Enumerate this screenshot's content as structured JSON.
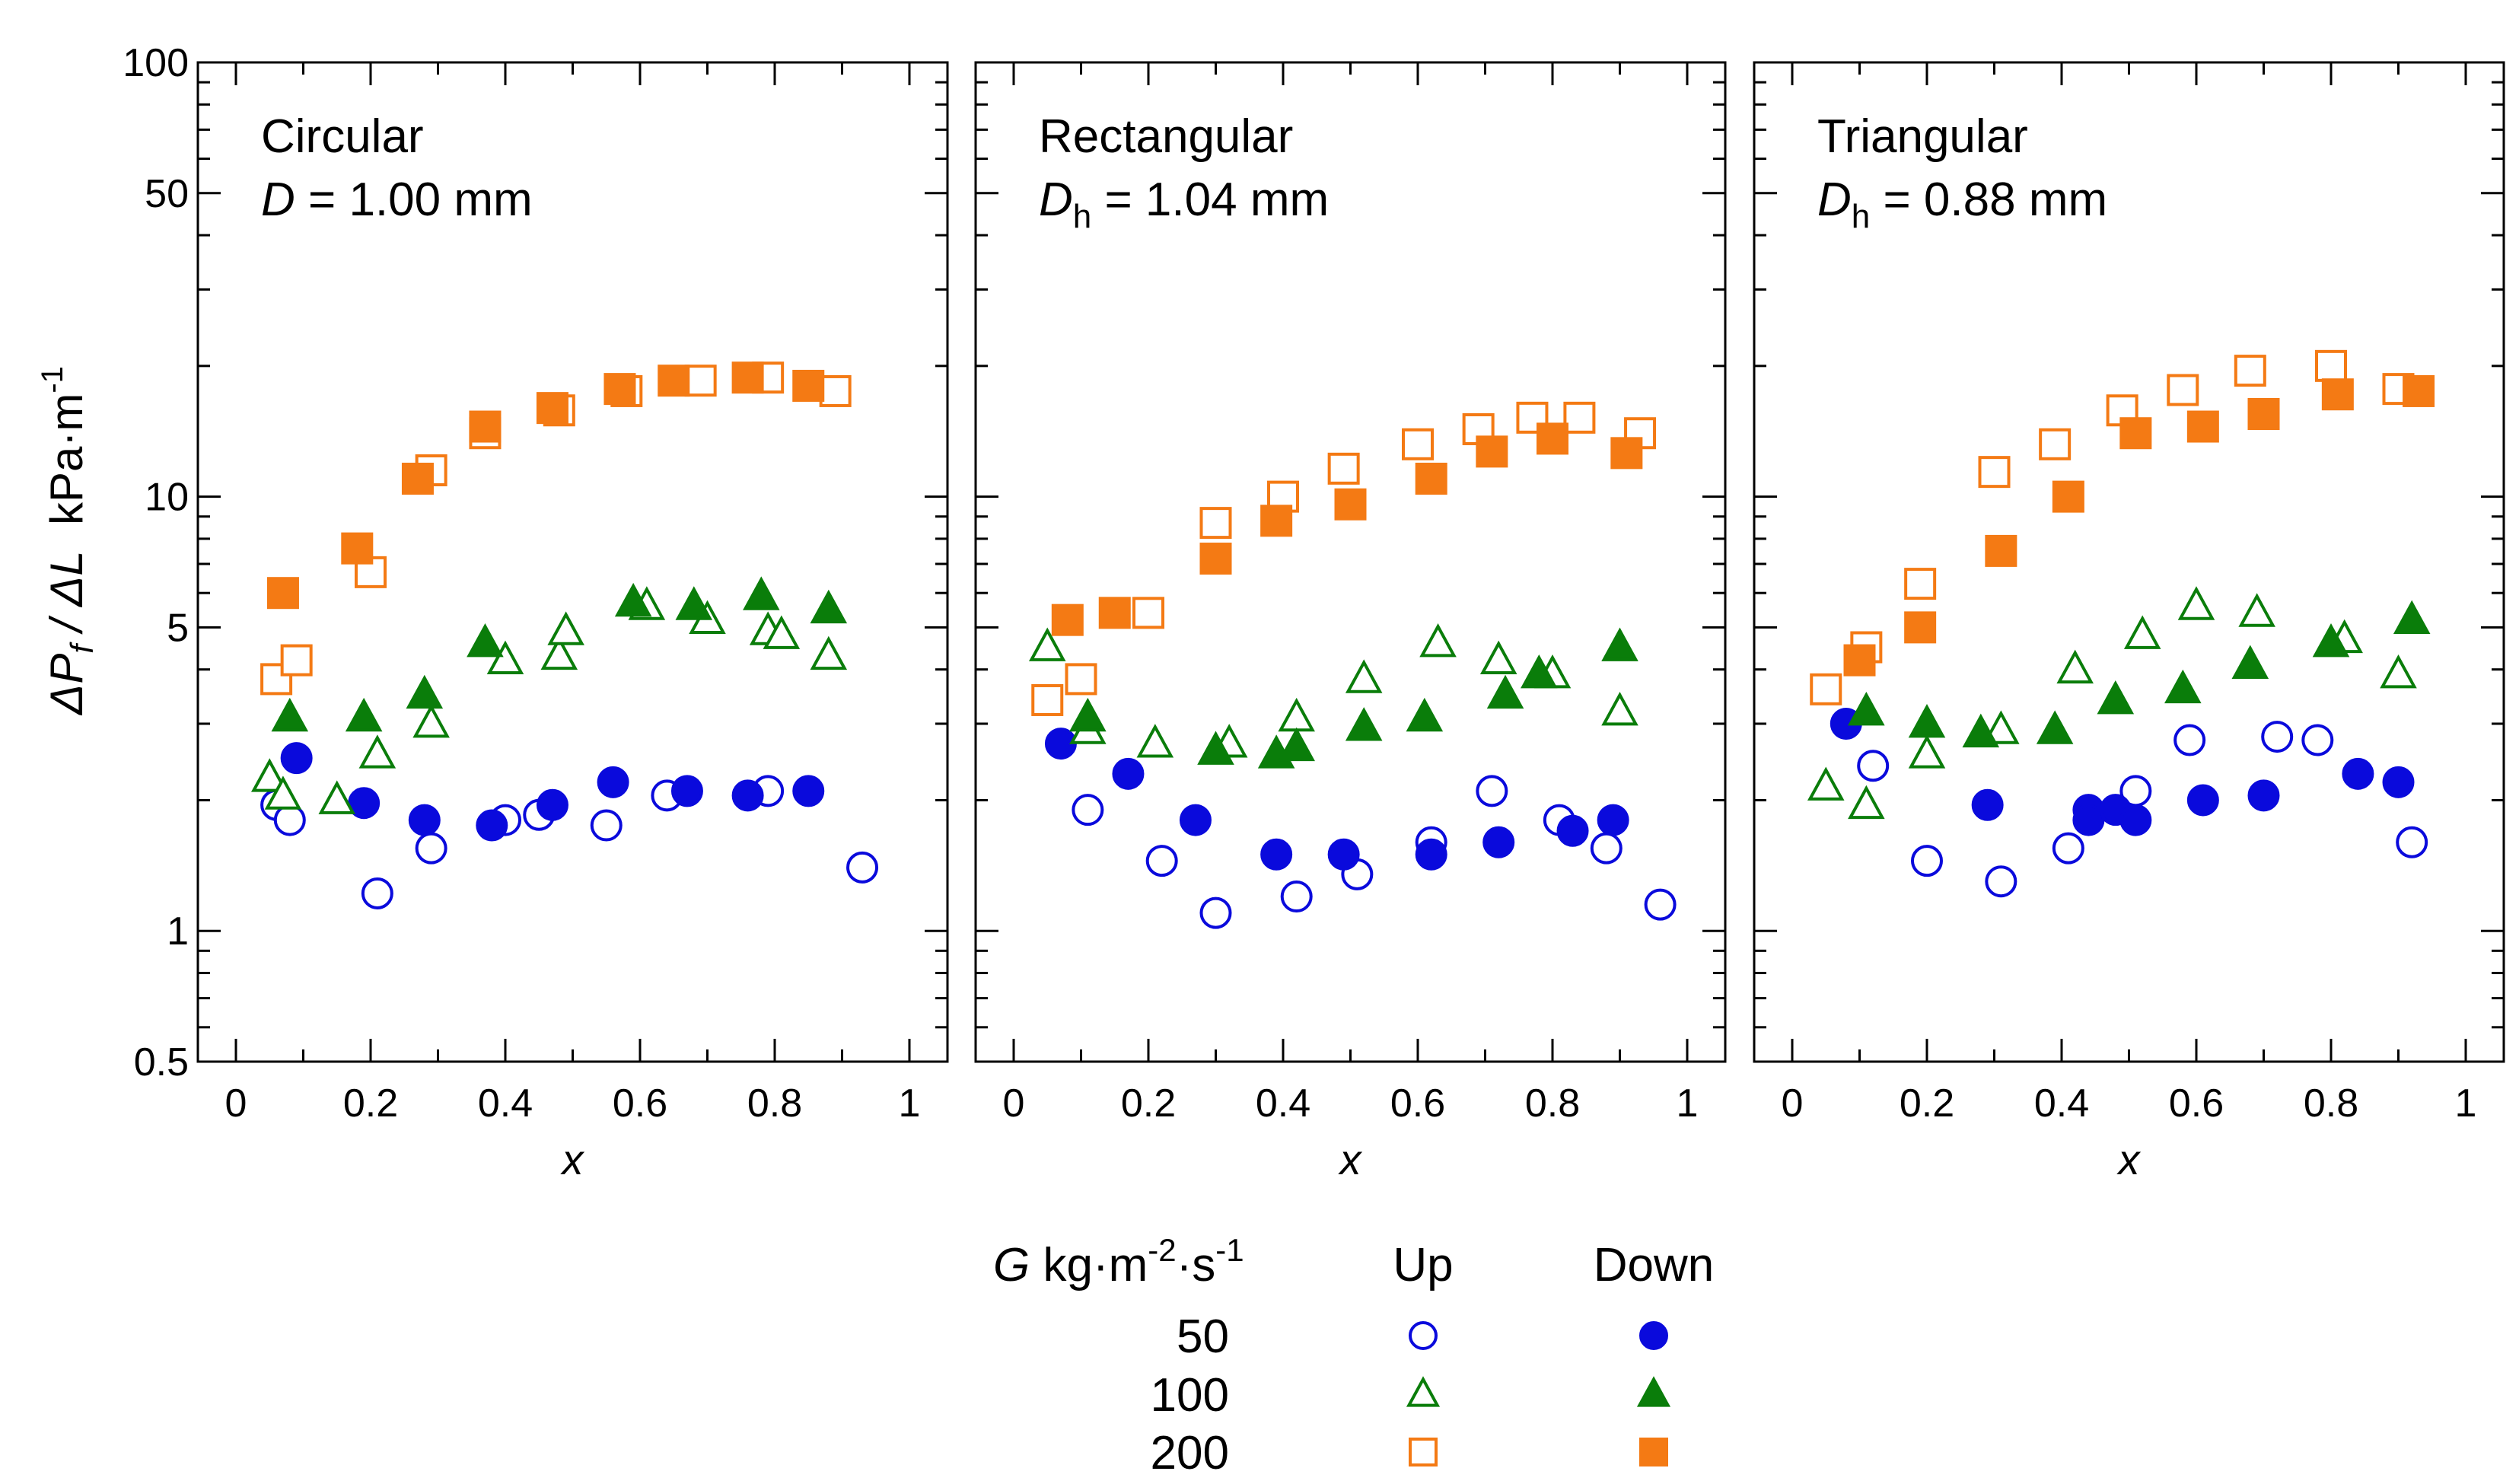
{
  "chart_data": {
    "type": "scatter",
    "y_scale": "log",
    "ylim": [
      0.5,
      100
    ],
    "xlim": [
      -0.05,
      1.03
    ],
    "y_ticks": [
      0.5,
      1,
      5,
      10,
      50,
      100
    ],
    "y_tick_labels": [
      "0.5",
      "1",
      "5",
      "10",
      "50",
      "100"
    ],
    "x_ticks": [
      0,
      0.2,
      0.4,
      0.6,
      0.8,
      1
    ],
    "x_tick_labels": [
      "0",
      "0.2",
      "0.4",
      "0.6",
      "0.8",
      "1"
    ],
    "xlabel": "x",
    "ylabel": {
      "delta1": "ΔP",
      "sub": "f",
      "slash": " / ΔL",
      "units": "kPa·m",
      "exp": "-1"
    },
    "colors": {
      "50": "#0a0adc",
      "100": "#0a7d0a",
      "200": "#f47a14"
    },
    "panels": [
      {
        "name": "circular",
        "title": "Circular",
        "dim_symbol": "D",
        "dim_sub": "",
        "dim_value": " = 1.00 mm",
        "series": [
          {
            "G": "50",
            "dir": "Up",
            "marker": "circle",
            "filled": false,
            "points": [
              [
                0.06,
                1.95
              ],
              [
                0.08,
                1.8
              ],
              [
                0.21,
                1.22
              ],
              [
                0.29,
                1.55
              ],
              [
                0.4,
                1.8
              ],
              [
                0.45,
                1.85
              ],
              [
                0.55,
                1.75
              ],
              [
                0.64,
                2.05
              ],
              [
                0.79,
                2.1
              ],
              [
                0.93,
                1.4
              ]
            ]
          },
          {
            "G": "50",
            "dir": "Down",
            "marker": "circle",
            "filled": true,
            "points": [
              [
                0.09,
                2.5
              ],
              [
                0.19,
                1.97
              ],
              [
                0.28,
                1.8
              ],
              [
                0.38,
                1.75
              ],
              [
                0.47,
                1.95
              ],
              [
                0.56,
                2.2
              ],
              [
                0.67,
                2.1
              ],
              [
                0.76,
                2.05
              ],
              [
                0.85,
                2.1
              ]
            ]
          },
          {
            "G": "100",
            "dir": "Up",
            "marker": "triangle",
            "filled": false,
            "points": [
              [
                0.05,
                2.25
              ],
              [
                0.07,
                2.05
              ],
              [
                0.15,
                2.0
              ],
              [
                0.21,
                2.55
              ],
              [
                0.29,
                3.0
              ],
              [
                0.4,
                4.2
              ],
              [
                0.48,
                4.3
              ],
              [
                0.49,
                4.9
              ],
              [
                0.61,
                5.6
              ],
              [
                0.7,
                5.2
              ],
              [
                0.79,
                4.9
              ],
              [
                0.81,
                4.8
              ],
              [
                0.88,
                4.3
              ]
            ]
          },
          {
            "G": "100",
            "dir": "Down",
            "marker": "triangle",
            "filled": true,
            "points": [
              [
                0.08,
                3.1
              ],
              [
                0.19,
                3.1
              ],
              [
                0.28,
                3.5
              ],
              [
                0.37,
                4.6
              ],
              [
                0.59,
                5.7
              ],
              [
                0.68,
                5.6
              ],
              [
                0.78,
                5.9
              ],
              [
                0.88,
                5.5
              ]
            ]
          },
          {
            "G": "200",
            "dir": "Up",
            "marker": "square",
            "filled": false,
            "points": [
              [
                0.06,
                3.8
              ],
              [
                0.09,
                4.2
              ],
              [
                0.2,
                6.7
              ],
              [
                0.29,
                11.5
              ],
              [
                0.37,
                14.0
              ],
              [
                0.48,
                15.8
              ],
              [
                0.58,
                17.5
              ],
              [
                0.69,
                18.5
              ],
              [
                0.79,
                18.8
              ],
              [
                0.89,
                17.5
              ]
            ]
          },
          {
            "G": "200",
            "dir": "Down",
            "marker": "square",
            "filled": true,
            "points": [
              [
                0.07,
                6.0
              ],
              [
                0.18,
                7.6
              ],
              [
                0.27,
                11.0
              ],
              [
                0.37,
                14.5
              ],
              [
                0.47,
                16.0
              ],
              [
                0.57,
                17.7
              ],
              [
                0.65,
                18.5
              ],
              [
                0.76,
                18.8
              ],
              [
                0.85,
                18.0
              ]
            ]
          }
        ]
      },
      {
        "name": "rectangular",
        "title": "Rectangular",
        "dim_symbol": "D",
        "dim_sub": "h",
        "dim_value": " = 1.04 mm",
        "series": [
          {
            "G": "50",
            "dir": "Up",
            "marker": "circle",
            "filled": false,
            "points": [
              [
                0.11,
                1.9
              ],
              [
                0.22,
                1.45
              ],
              [
                0.3,
                1.1
              ],
              [
                0.42,
                1.2
              ],
              [
                0.51,
                1.35
              ],
              [
                0.62,
                1.6
              ],
              [
                0.71,
                2.1
              ],
              [
                0.81,
                1.8
              ],
              [
                0.88,
                1.55
              ],
              [
                0.96,
                1.15
              ]
            ]
          },
          {
            "G": "50",
            "dir": "Down",
            "marker": "circle",
            "filled": true,
            "points": [
              [
                0.07,
                2.7
              ],
              [
                0.17,
                2.3
              ],
              [
                0.27,
                1.8
              ],
              [
                0.39,
                1.5
              ],
              [
                0.49,
                1.5
              ],
              [
                0.62,
                1.5
              ],
              [
                0.72,
                1.6
              ],
              [
                0.83,
                1.7
              ],
              [
                0.89,
                1.8
              ]
            ]
          },
          {
            "G": "100",
            "dir": "Up",
            "marker": "triangle",
            "filled": false,
            "points": [
              [
                0.05,
                4.5
              ],
              [
                0.11,
                2.9
              ],
              [
                0.21,
                2.7
              ],
              [
                0.32,
                2.7
              ],
              [
                0.42,
                3.1
              ],
              [
                0.52,
                3.8
              ],
              [
                0.63,
                4.6
              ],
              [
                0.72,
                4.2
              ],
              [
                0.8,
                3.9
              ],
              [
                0.9,
                3.2
              ]
            ]
          },
          {
            "G": "100",
            "dir": "Down",
            "marker": "triangle",
            "filled": true,
            "points": [
              [
                0.11,
                3.1
              ],
              [
                0.3,
                2.6
              ],
              [
                0.39,
                2.55
              ],
              [
                0.42,
                2.65
              ],
              [
                0.52,
                2.95
              ],
              [
                0.61,
                3.1
              ],
              [
                0.73,
                3.5
              ],
              [
                0.78,
                3.9
              ],
              [
                0.9,
                4.5
              ]
            ]
          },
          {
            "G": "200",
            "dir": "Up",
            "marker": "square",
            "filled": false,
            "points": [
              [
                0.05,
                3.4
              ],
              [
                0.1,
                3.8
              ],
              [
                0.2,
                5.4
              ],
              [
                0.3,
                8.7
              ],
              [
                0.4,
                10.0
              ],
              [
                0.49,
                11.6
              ],
              [
                0.6,
                13.2
              ],
              [
                0.69,
                14.3
              ],
              [
                0.77,
                15.2
              ],
              [
                0.84,
                15.2
              ],
              [
                0.93,
                14.0
              ]
            ]
          },
          {
            "G": "200",
            "dir": "Down",
            "marker": "square",
            "filled": true,
            "points": [
              [
                0.08,
                5.2
              ],
              [
                0.15,
                5.4
              ],
              [
                0.3,
                7.2
              ],
              [
                0.39,
                8.8
              ],
              [
                0.5,
                9.6
              ],
              [
                0.62,
                11.0
              ],
              [
                0.71,
                12.7
              ],
              [
                0.8,
                13.6
              ],
              [
                0.91,
                12.6
              ]
            ]
          }
        ]
      },
      {
        "name": "triangular",
        "title": "Triangular",
        "dim_symbol": "D",
        "dim_sub": "h",
        "dim_value": " = 0.88 mm",
        "series": [
          {
            "G": "50",
            "dir": "Up",
            "marker": "circle",
            "filled": false,
            "points": [
              [
                0.12,
                2.4
              ],
              [
                0.2,
                1.45
              ],
              [
                0.31,
                1.3
              ],
              [
                0.41,
                1.55
              ],
              [
                0.51,
                2.1
              ],
              [
                0.59,
                2.75
              ],
              [
                0.72,
                2.8
              ],
              [
                0.78,
                2.75
              ],
              [
                0.92,
                1.6
              ]
            ]
          },
          {
            "G": "50",
            "dir": "Down",
            "marker": "circle",
            "filled": true,
            "points": [
              [
                0.08,
                3.0
              ],
              [
                0.29,
                1.95
              ],
              [
                0.44,
                1.9
              ],
              [
                0.44,
                1.8
              ],
              [
                0.48,
                1.9
              ],
              [
                0.51,
                1.8
              ],
              [
                0.61,
                2.0
              ],
              [
                0.7,
                2.05
              ],
              [
                0.84,
                2.3
              ],
              [
                0.9,
                2.2
              ]
            ]
          },
          {
            "G": "100",
            "dir": "Up",
            "marker": "triangle",
            "filled": false,
            "points": [
              [
                0.05,
                2.15
              ],
              [
                0.11,
                1.95
              ],
              [
                0.2,
                2.55
              ],
              [
                0.31,
                2.9
              ],
              [
                0.42,
                4.0
              ],
              [
                0.52,
                4.8
              ],
              [
                0.6,
                5.6
              ],
              [
                0.69,
                5.4
              ],
              [
                0.82,
                4.7
              ],
              [
                0.9,
                3.9
              ]
            ]
          },
          {
            "G": "100",
            "dir": "Down",
            "marker": "triangle",
            "filled": true,
            "points": [
              [
                0.11,
                3.2
              ],
              [
                0.2,
                3.0
              ],
              [
                0.28,
                2.85
              ],
              [
                0.39,
                2.9
              ],
              [
                0.48,
                3.4
              ],
              [
                0.58,
                3.6
              ],
              [
                0.68,
                4.1
              ],
              [
                0.8,
                4.6
              ],
              [
                0.92,
                5.2
              ]
            ]
          },
          {
            "G": "200",
            "dir": "Up",
            "marker": "square",
            "filled": false,
            "points": [
              [
                0.05,
                3.6
              ],
              [
                0.11,
                4.5
              ],
              [
                0.19,
                6.3
              ],
              [
                0.3,
                11.4
              ],
              [
                0.39,
                13.2
              ],
              [
                0.49,
                15.8
              ],
              [
                0.58,
                17.6
              ],
              [
                0.68,
                19.5
              ],
              [
                0.8,
                20.0
              ],
              [
                0.9,
                17.7
              ]
            ]
          },
          {
            "G": "200",
            "dir": "Down",
            "marker": "square",
            "filled": true,
            "points": [
              [
                0.1,
                4.2
              ],
              [
                0.19,
                5.0
              ],
              [
                0.31,
                7.5
              ],
              [
                0.41,
                10.0
              ],
              [
                0.51,
                14.0
              ],
              [
                0.61,
                14.5
              ],
              [
                0.7,
                15.5
              ],
              [
                0.81,
                17.2
              ],
              [
                0.93,
                17.5
              ]
            ]
          }
        ]
      }
    ],
    "legend": {
      "header_G": "G",
      "header_units": " kg·m",
      "header_exp1": "-2",
      "header_mid": "·s",
      "header_exp2": "-1",
      "up_label": "Up",
      "down_label": "Down",
      "entries": [
        {
          "label": "50",
          "marker": "circle",
          "G": "50"
        },
        {
          "label": "100",
          "marker": "triangle",
          "G": "100"
        },
        {
          "label": "200",
          "marker": "square",
          "G": "200"
        }
      ]
    }
  }
}
